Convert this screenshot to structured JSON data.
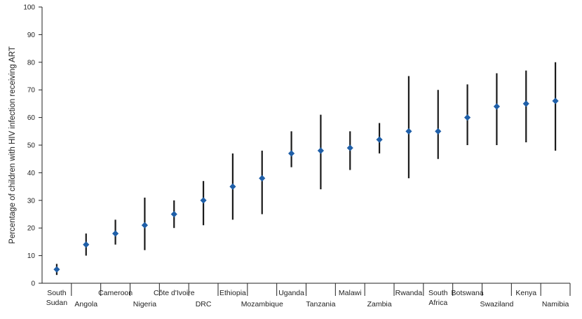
{
  "chart_data": {
    "type": "scatter",
    "title": "",
    "xlabel": "",
    "ylabel": "Percentage of children with HIV infection receiving ART",
    "ylim": [
      0,
      100
    ],
    "yticks": [
      0,
      10,
      20,
      30,
      40,
      50,
      60,
      70,
      80,
      90,
      100
    ],
    "grid": false,
    "legend": "none",
    "point_color": "#1f5fa8",
    "error_bar_color": "#1a1a1a",
    "categories": [
      {
        "lines": [
          "South",
          "Sudan"
        ],
        "value": 5,
        "low": 3,
        "high": 7
      },
      {
        "lines": [
          "Angola"
        ],
        "value": 14,
        "low": 10,
        "high": 18
      },
      {
        "lines": [
          "Cameroon"
        ],
        "value": 18,
        "low": 14,
        "high": 23
      },
      {
        "lines": [
          "Nigeria"
        ],
        "value": 21,
        "low": 12,
        "high": 31
      },
      {
        "lines": [
          "Côte d'Ivoire"
        ],
        "value": 25,
        "low": 20,
        "high": 30
      },
      {
        "lines": [
          "DRC"
        ],
        "value": 30,
        "low": 21,
        "high": 37
      },
      {
        "lines": [
          "Ethiopia"
        ],
        "value": 35,
        "low": 23,
        "high": 47
      },
      {
        "lines": [
          "Mozambique"
        ],
        "value": 38,
        "low": 25,
        "high": 48
      },
      {
        "lines": [
          "Uganda"
        ],
        "value": 47,
        "low": 42,
        "high": 55
      },
      {
        "lines": [
          "Tanzania"
        ],
        "value": 48,
        "low": 34,
        "high": 61
      },
      {
        "lines": [
          "Malawi"
        ],
        "value": 49,
        "low": 41,
        "high": 55
      },
      {
        "lines": [
          "Zambia"
        ],
        "value": 52,
        "low": 47,
        "high": 58
      },
      {
        "lines": [
          "Rwanda"
        ],
        "value": 55,
        "low": 38,
        "high": 75
      },
      {
        "lines": [
          "South",
          "Africa"
        ],
        "value": 55,
        "low": 45,
        "high": 70
      },
      {
        "lines": [
          "Botswana"
        ],
        "value": 60,
        "low": 50,
        "high": 72
      },
      {
        "lines": [
          "Swaziland"
        ],
        "value": 64,
        "low": 50,
        "high": 76
      },
      {
        "lines": [
          "Kenya"
        ],
        "value": 65,
        "low": 51,
        "high": 77
      },
      {
        "lines": [
          "Namibia"
        ],
        "value": 66,
        "low": 48,
        "high": 80
      }
    ]
  }
}
